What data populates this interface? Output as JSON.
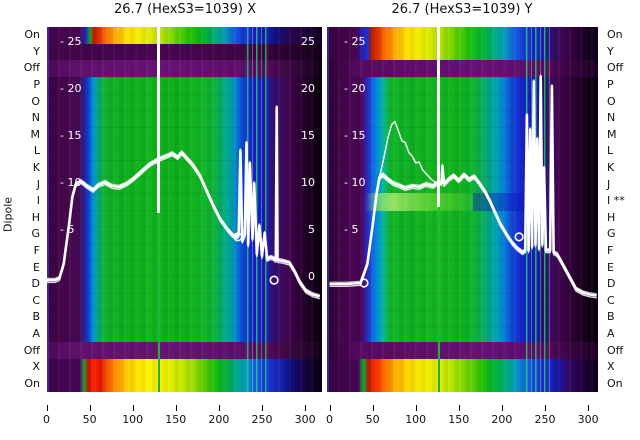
{
  "figure": {
    "ylabel": "Dipole",
    "background": "#ffffff"
  },
  "palette": {
    "heat_purple": "#4a0653",
    "heat_green": "#12b41e",
    "heat_blue": "#1722c8",
    "heat_cyan": "#00a4a6",
    "heat_yellow": "#ffe100",
    "heat_red": "#e93d00",
    "curve": "#ffffff",
    "cursor_line_green": "#2ec22e",
    "text": "#111111"
  },
  "row_labels_left": [
    "On",
    "Y",
    "Off",
    "P",
    "O",
    "N",
    "M",
    "L",
    "K",
    "J",
    "I",
    "H",
    "G",
    "F",
    "E",
    "D",
    "C",
    "B",
    "A",
    "Off",
    "X",
    "On"
  ],
  "row_labels_right": [
    "On",
    "Y",
    "Off",
    "P",
    "O",
    "N",
    "M",
    "L",
    "K",
    "J",
    "I **",
    "H",
    "G",
    "F",
    "E",
    "D",
    "C",
    "B",
    "A",
    "Off",
    "X",
    "On"
  ],
  "chart_data": [
    {
      "type": "heatmap",
      "title": "26.7 (HexS3=1039) X",
      "x_ticks": [
        0,
        50,
        100,
        150,
        200,
        250,
        300
      ],
      "inner_ticks_left": [
        "- 25",
        "- 20",
        "- 15",
        "- 10",
        "- 5"
      ],
      "inner_ticks_right": [
        "25",
        "20",
        "15",
        "10",
        "5",
        "0"
      ],
      "value_axis_range": [
        0,
        25
      ],
      "cursor_x": 128,
      "series": [
        {
          "name": "profile",
          "points": [
            [
              0,
              0.3
            ],
            [
              10,
              0.3
            ],
            [
              15,
              0.5
            ],
            [
              20,
              2.0
            ],
            [
              26,
              6.0
            ],
            [
              30,
              9.0
            ],
            [
              34,
              10.3
            ],
            [
              40,
              10.6
            ],
            [
              47,
              10.1
            ],
            [
              54,
              9.7
            ],
            [
              60,
              10.2
            ],
            [
              68,
              10.5
            ],
            [
              76,
              10.1
            ],
            [
              84,
              10.0
            ],
            [
              92,
              10.3
            ],
            [
              100,
              10.8
            ],
            [
              110,
              11.6
            ],
            [
              120,
              12.4
            ],
            [
              130,
              12.9
            ],
            [
              138,
              13.2
            ],
            [
              146,
              13.5
            ],
            [
              152,
              13.1
            ],
            [
              157,
              13.6
            ],
            [
              163,
              13.0
            ],
            [
              170,
              12.3
            ],
            [
              178,
              11.2
            ],
            [
              186,
              9.6
            ],
            [
              194,
              8.0
            ],
            [
              202,
              6.6
            ],
            [
              210,
              5.6
            ],
            [
              216,
              5.0
            ],
            [
              220,
              4.8
            ],
            [
              223,
              5.0
            ],
            [
              225,
              13.8
            ],
            [
              227,
              4.4
            ],
            [
              230,
              5.0
            ],
            [
              232,
              14.6
            ],
            [
              234,
              4.0
            ],
            [
              236,
              12.5
            ],
            [
              239,
              4.6
            ],
            [
              241,
              10.4
            ],
            [
              244,
              3.0
            ],
            [
              247,
              6.0
            ],
            [
              250,
              2.8
            ],
            [
              253,
              5.2
            ],
            [
              256,
              2.5
            ],
            [
              260,
              2.7
            ],
            [
              263,
              2.6
            ],
            [
              266,
              2.4
            ],
            [
              267,
              18.3
            ],
            [
              268,
              2.4
            ],
            [
              274,
              2.3
            ],
            [
              282,
              2.1
            ],
            [
              288,
              1.2
            ],
            [
              294,
              0.1
            ],
            [
              301,
              -0.8
            ],
            [
              309,
              -1.2
            ],
            [
              317,
              -1.4
            ]
          ]
        }
      ],
      "markers": [
        [
          222,
          4.8
        ],
        [
          264,
          0.3
        ]
      ]
    },
    {
      "type": "heatmap",
      "title": "26.7 (HexS3=1039) Y",
      "x_ticks": [
        0,
        50,
        100,
        150,
        200,
        250,
        300
      ],
      "inner_ticks_left": [
        "- 25",
        "- 20",
        "- 15",
        "- 10",
        "- 5"
      ],
      "inner_ticks_right": [],
      "value_axis_range": [
        0,
        25
      ],
      "cursor_x": 128,
      "series": [
        {
          "name": "profile",
          "points": [
            [
              0,
              -0.1
            ],
            [
              20,
              -0.1
            ],
            [
              36,
              0.0
            ],
            [
              44,
              2.0
            ],
            [
              50,
              6.0
            ],
            [
              55,
              9.5
            ],
            [
              58,
              11.0
            ],
            [
              62,
              11.3
            ],
            [
              68,
              10.8
            ],
            [
              74,
              10.4
            ],
            [
              80,
              10.2
            ],
            [
              88,
              9.9
            ],
            [
              96,
              10.1
            ],
            [
              104,
              10.0
            ],
            [
              112,
              10.3
            ],
            [
              120,
              10.1
            ],
            [
              126,
              10.5
            ],
            [
              130,
              10.4
            ],
            [
              131,
              12.2
            ],
            [
              133,
              10.3
            ],
            [
              138,
              10.8
            ],
            [
              144,
              11.2
            ],
            [
              150,
              10.7
            ],
            [
              156,
              11.3
            ],
            [
              162,
              10.8
            ],
            [
              168,
              11.1
            ],
            [
              174,
              10.4
            ],
            [
              180,
              9.6
            ],
            [
              186,
              8.6
            ],
            [
              192,
              7.4
            ],
            [
              198,
              6.2
            ],
            [
              206,
              5.0
            ],
            [
              212,
              4.2
            ],
            [
              218,
              3.6
            ],
            [
              224,
              3.2
            ],
            [
              227,
              3.4
            ],
            [
              229,
              17.5
            ],
            [
              231,
              3.4
            ],
            [
              233,
              16.0
            ],
            [
              235,
              3.8
            ],
            [
              237,
              21.0
            ],
            [
              239,
              4.0
            ],
            [
              241,
              15.0
            ],
            [
              243,
              3.6
            ],
            [
              245,
              21.5
            ],
            [
              247,
              4.0
            ],
            [
              249,
              12.0
            ],
            [
              251,
              3.4
            ],
            [
              256,
              3.4
            ],
            [
              258,
              20.5
            ],
            [
              260,
              3.2
            ],
            [
              264,
              3.0
            ],
            [
              268,
              2.4
            ],
            [
              274,
              1.4
            ],
            [
              280,
              0.4
            ],
            [
              286,
              -0.6
            ],
            [
              294,
              -1.0
            ],
            [
              302,
              -1.2
            ],
            [
              310,
              -1.3
            ]
          ]
        },
        {
          "name": "upper-branch",
          "points": [
            [
              58,
              11.0
            ],
            [
              63,
              13.0
            ],
            [
              68,
              15.2
            ],
            [
              72,
              16.5
            ],
            [
              76,
              16.8
            ],
            [
              80,
              15.8
            ],
            [
              84,
              14.8
            ],
            [
              88,
              14.6
            ],
            [
              92,
              13.6
            ],
            [
              96,
              13.2
            ],
            [
              100,
              12.5
            ],
            [
              104,
              12.6
            ],
            [
              108,
              11.8
            ],
            [
              112,
              11.4
            ],
            [
              118,
              10.8
            ],
            [
              124,
              10.4
            ],
            [
              130,
              10.3
            ]
          ]
        }
      ],
      "markers": [
        [
          40,
          0.0
        ],
        [
          220,
          4.8
        ]
      ]
    }
  ]
}
